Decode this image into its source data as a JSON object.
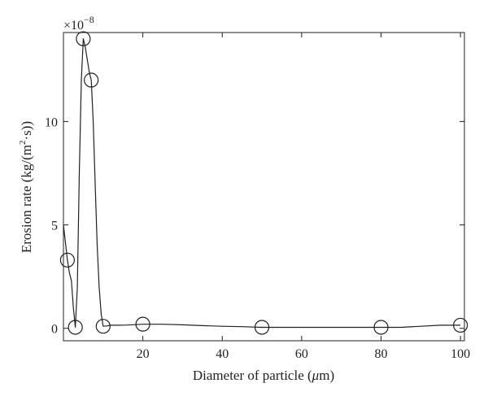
{
  "chart_data": {
    "type": "line",
    "xlabel_prefix": "Diameter of particle (",
    "xlabel_mu": "μ",
    "xlabel_suffix": "m)",
    "ylabel_prefix": "Erosion rate (kg/(m",
    "ylabel_sup": "2",
    "ylabel_suffix": "·s))",
    "y_multiplier_base": "×10",
    "y_multiplier_exp": "−8",
    "xlim": [
      0,
      101
    ],
    "ylim": [
      -0.6,
      14.3
    ],
    "x_ticks": [
      20,
      40,
      60,
      80,
      100
    ],
    "y_ticks": [
      0,
      5,
      10
    ],
    "grid": false,
    "series": [
      {
        "markers": "open-circle",
        "color": "#231f20",
        "x": [
          1,
          3,
          5,
          7,
          10,
          20,
          50,
          80,
          100
        ],
        "y": [
          3.3,
          0.05,
          14.0,
          12.0,
          0.1,
          0.2,
          0.05,
          0.05,
          0.15
        ]
      }
    ],
    "curve": {
      "x": [
        0,
        1,
        1.5,
        2,
        2.5,
        3,
        3.5,
        4,
        4.5,
        5,
        5.5,
        6,
        6.5,
        7,
        7.5,
        8,
        8.5,
        9,
        9.5,
        10,
        11,
        12,
        14,
        16,
        18,
        20,
        25,
        30,
        35,
        40,
        45,
        50,
        55,
        60,
        65,
        70,
        75,
        80,
        85,
        90,
        95,
        100
      ],
      "y": [
        5.0,
        3.3,
        2.7,
        2.3,
        1.0,
        0.05,
        2.0,
        7.5,
        12.0,
        14.0,
        13.6,
        13.0,
        12.4,
        12.0,
        10.0,
        7.0,
        4.0,
        2.0,
        0.7,
        0.1,
        0.12,
        0.15,
        0.15,
        0.16,
        0.18,
        0.2,
        0.2,
        0.17,
        0.13,
        0.1,
        0.08,
        0.05,
        0.05,
        0.05,
        0.05,
        0.05,
        0.05,
        0.05,
        0.05,
        0.1,
        0.15,
        0.15
      ]
    }
  }
}
